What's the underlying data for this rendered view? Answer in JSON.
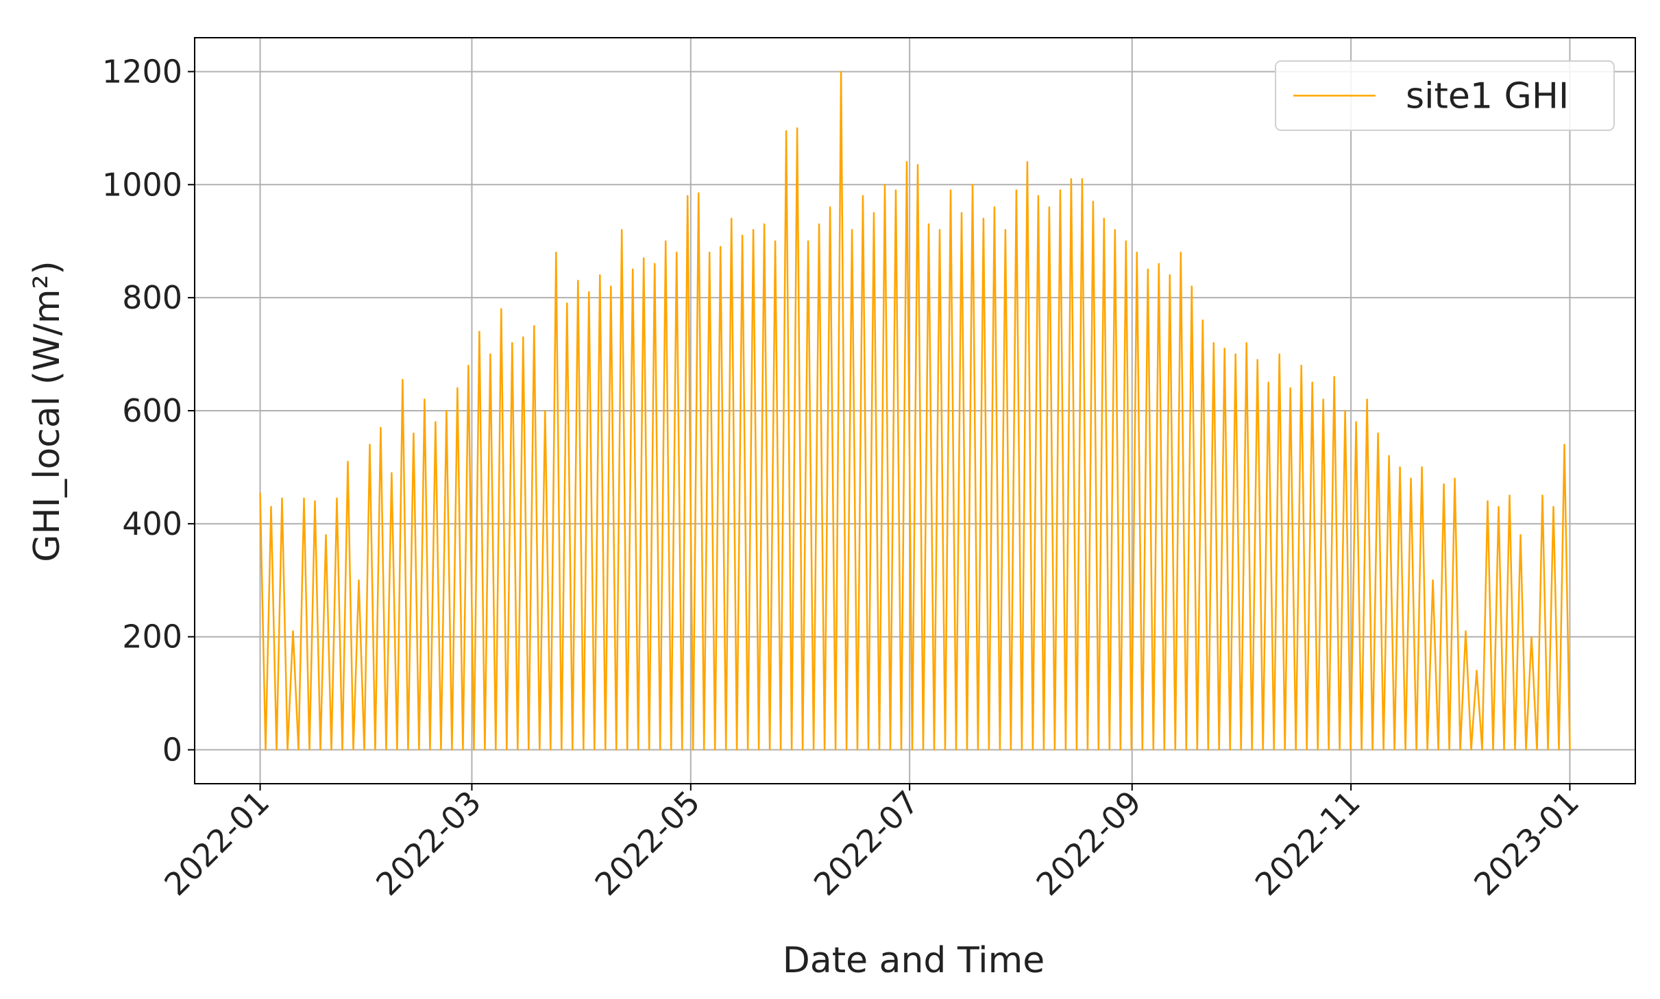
{
  "chart_data": {
    "type": "line",
    "xlabel": "Date and Time",
    "ylabel": "GHI_local (W/m²)",
    "xlim": [
      "2022-01",
      "2023-01"
    ],
    "xticks": [
      "2022-01",
      "2022-03",
      "2022-05",
      "2022-07",
      "2022-09",
      "2022-11",
      "2023-01"
    ],
    "ylim": [
      -60,
      1260
    ],
    "yticks": [
      0,
      200,
      400,
      600,
      800,
      1000,
      1200
    ],
    "grid": true,
    "legend": "upper-right",
    "series": [
      {
        "name": "site1 GHI",
        "color": "#ffa500",
        "values": [
          455,
          0,
          430,
          0,
          445,
          0,
          210,
          0,
          445,
          0,
          440,
          0,
          380,
          0,
          445,
          0,
          510,
          0,
          300,
          0,
          540,
          0,
          570,
          0,
          490,
          0,
          655,
          0,
          560,
          0,
          620,
          0,
          580,
          0,
          600,
          0,
          640,
          0,
          680,
          0,
          740,
          0,
          700,
          0,
          780,
          0,
          720,
          0,
          730,
          0,
          750,
          0,
          600,
          0,
          880,
          0,
          790,
          0,
          830,
          0,
          810,
          0,
          840,
          0,
          820,
          0,
          920,
          0,
          850,
          0,
          870,
          0,
          860,
          0,
          900,
          0,
          880,
          0,
          980,
          0,
          985,
          0,
          880,
          0,
          890,
          0,
          940,
          0,
          910,
          0,
          920,
          0,
          930,
          0,
          900,
          0,
          1095,
          0,
          1100,
          0,
          900,
          0,
          930,
          0,
          960,
          0,
          1200,
          0,
          920,
          0,
          980,
          0,
          950,
          0,
          1000,
          0,
          990,
          0,
          1040,
          0,
          1035,
          0,
          930,
          0,
          920,
          0,
          990,
          0,
          950,
          0,
          1000,
          0,
          940,
          0,
          960,
          0,
          920,
          0,
          990,
          0,
          1040,
          0,
          980,
          0,
          960,
          0,
          990,
          0,
          1010,
          0,
          1010,
          0,
          970,
          0,
          940,
          0,
          920,
          0,
          900,
          0,
          880,
          0,
          850,
          0,
          860,
          0,
          840,
          0,
          880,
          0,
          820,
          0,
          760,
          0,
          720,
          0,
          710,
          0,
          700,
          0,
          720,
          0,
          690,
          0,
          650,
          0,
          700,
          0,
          640,
          0,
          680,
          0,
          650,
          0,
          620,
          0,
          660,
          0,
          600,
          0,
          580,
          0,
          620,
          0,
          560,
          0,
          520,
          0,
          500,
          0,
          480,
          0,
          500,
          0,
          300,
          0,
          470,
          0,
          480,
          0,
          210,
          0,
          140,
          0,
          440,
          0,
          430,
          0,
          450,
          0,
          380,
          0,
          200,
          0,
          450,
          0,
          430,
          0,
          540,
          0
        ]
      }
    ]
  }
}
